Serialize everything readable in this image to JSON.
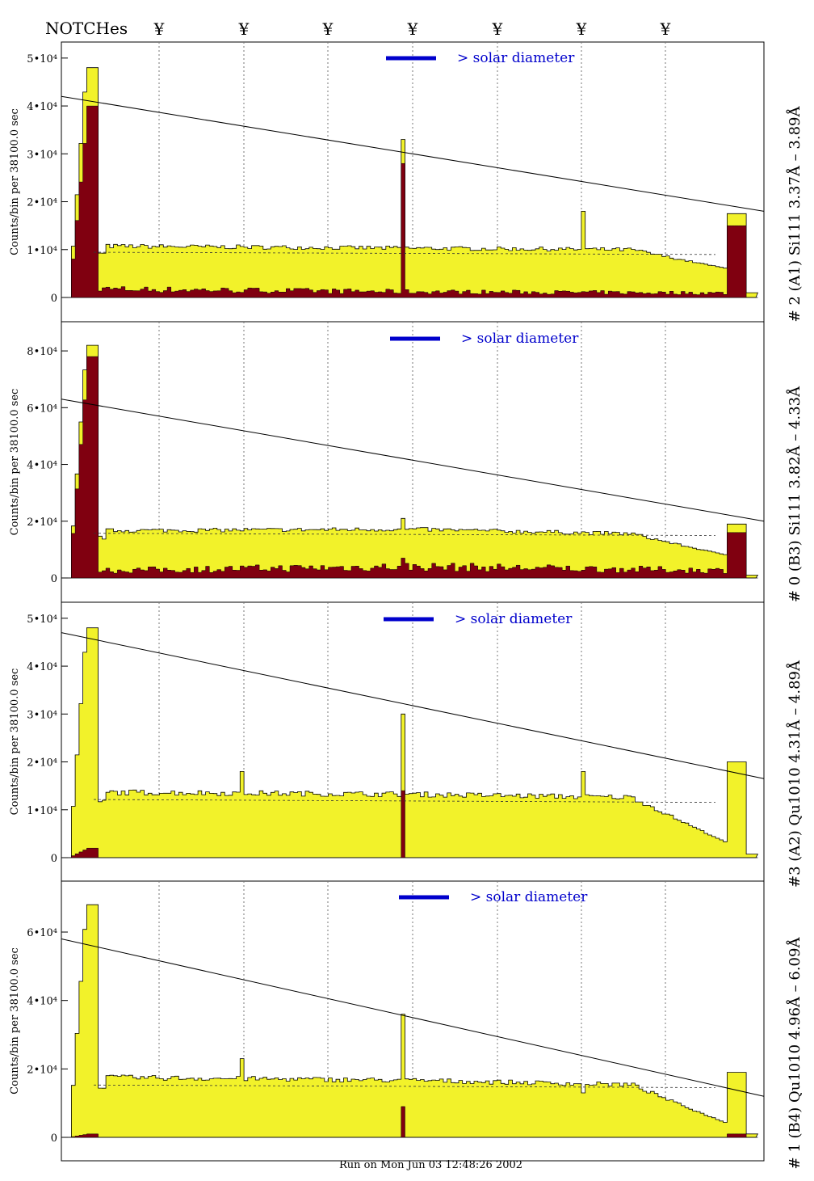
{
  "header": {
    "notches_label": "NOTCHes",
    "notch_symbol": "¥",
    "notch_count": 7
  },
  "footer": {
    "run_text": "Run on Mon Jun 03 12:48:26 2002"
  },
  "colors": {
    "fill": "#f2f22a",
    "dark": "#800010",
    "accent": "#0000cc",
    "axis": "#000000"
  },
  "chart_data": [
    {
      "type": "area",
      "label": "# 2 (A1) Si111  3.37Å – 3.89Å",
      "ylabel": "Counts/bin per  38100.0 sec",
      "annotation": "> solar diameter",
      "ylim": [
        0,
        52000
      ],
      "yticks": [
        0,
        10000,
        20000,
        30000,
        40000,
        50000
      ],
      "ytick_labels": [
        "0",
        "1•10⁴",
        "2•10⁴",
        "3•10⁴",
        "4•10⁴",
        "5•10⁴"
      ],
      "line": [
        42000,
        18000
      ],
      "yellow": {
        "plateau": [
          11000,
          10500,
          10000
        ],
        "edge_peak": 48000,
        "right_peak": 17500,
        "center_peak": 33000,
        "notch_peaks": [
          5,
          18000
        ],
        "tail": [
          6000,
          2000
        ]
      },
      "dark": {
        "plateau": [
          1800,
          1200,
          900
        ],
        "edge_peak": 40000,
        "right_peak": 15000,
        "center_peak": 28000
      }
    },
    {
      "type": "area",
      "label": "# 0 (B3) Si111  3.82Å – 4.33Å",
      "ylabel": "Counts/bin per  38100.0 sec",
      "annotation": "> solar diameter",
      "ylim": [
        0,
        88000
      ],
      "yticks": [
        0,
        20000,
        40000,
        60000,
        80000
      ],
      "ytick_labels": [
        "0",
        "2•10⁴",
        "4•10⁴",
        "6•10⁴",
        "8•10⁴"
      ],
      "line": [
        63000,
        20000
      ],
      "yellow": {
        "plateau": [
          17000,
          17500,
          15000
        ],
        "edge_peak": 82000,
        "right_peak": 19000,
        "center_peak": 21000,
        "notch_peaks": [],
        "tail": [
          8000,
          2000
        ]
      },
      "dark": {
        "plateau": [
          2500,
          4000,
          2500
        ],
        "edge_peak": 78000,
        "right_peak": 16000,
        "center_peak": 7000
      }
    },
    {
      "type": "area",
      "label": "#3 (A2) Qu1010  4.31Å – 4.89Å",
      "ylabel": "Counts/bin per  38100.0 sec",
      "annotation": "> solar diameter",
      "ylim": [
        0,
        52000
      ],
      "yticks": [
        0,
        10000,
        20000,
        30000,
        40000,
        50000
      ],
      "ytick_labels": [
        "0",
        "1•10⁴",
        "2•10⁴",
        "3•10⁴",
        "4•10⁴",
        "5•10⁴"
      ],
      "line": [
        47000,
        16500
      ],
      "yellow": {
        "plateau": [
          14000,
          13500,
          12500
        ],
        "edge_peak": 48000,
        "right_peak": 20000,
        "center_peak": 30000,
        "notch_peaks": [
          1,
          18000,
          5,
          18000
        ],
        "tail": [
          3000,
          1500
        ]
      },
      "dark": {
        "plateau": [
          0,
          0,
          0
        ],
        "edge_peak": 2000,
        "right_peak": 0,
        "center_peak": 14000
      }
    },
    {
      "type": "area",
      "label": "# 1 (B4) Qu1010 4.96Å – 6.09Å",
      "ylabel": "Counts/bin per  38100.0 sec",
      "annotation": "> solar diameter",
      "ylim": [
        0,
        73000
      ],
      "yticks": [
        0,
        20000,
        40000,
        60000
      ],
      "ytick_labels": [
        "0",
        "2•10⁴",
        "4•10⁴",
        "6•10⁴"
      ],
      "line": [
        58000,
        12000
      ],
      "yellow": {
        "plateau": [
          18000,
          17000,
          15000
        ],
        "edge_peak": 68000,
        "right_peak": 19000,
        "center_peak": 36000,
        "notch_peaks": [
          1,
          23000,
          5,
          13000
        ],
        "tail": [
          4000,
          2000
        ]
      },
      "dark": {
        "plateau": [
          0,
          0,
          0
        ],
        "edge_peak": 1000,
        "right_peak": 1000,
        "center_peak": 9000
      }
    }
  ]
}
